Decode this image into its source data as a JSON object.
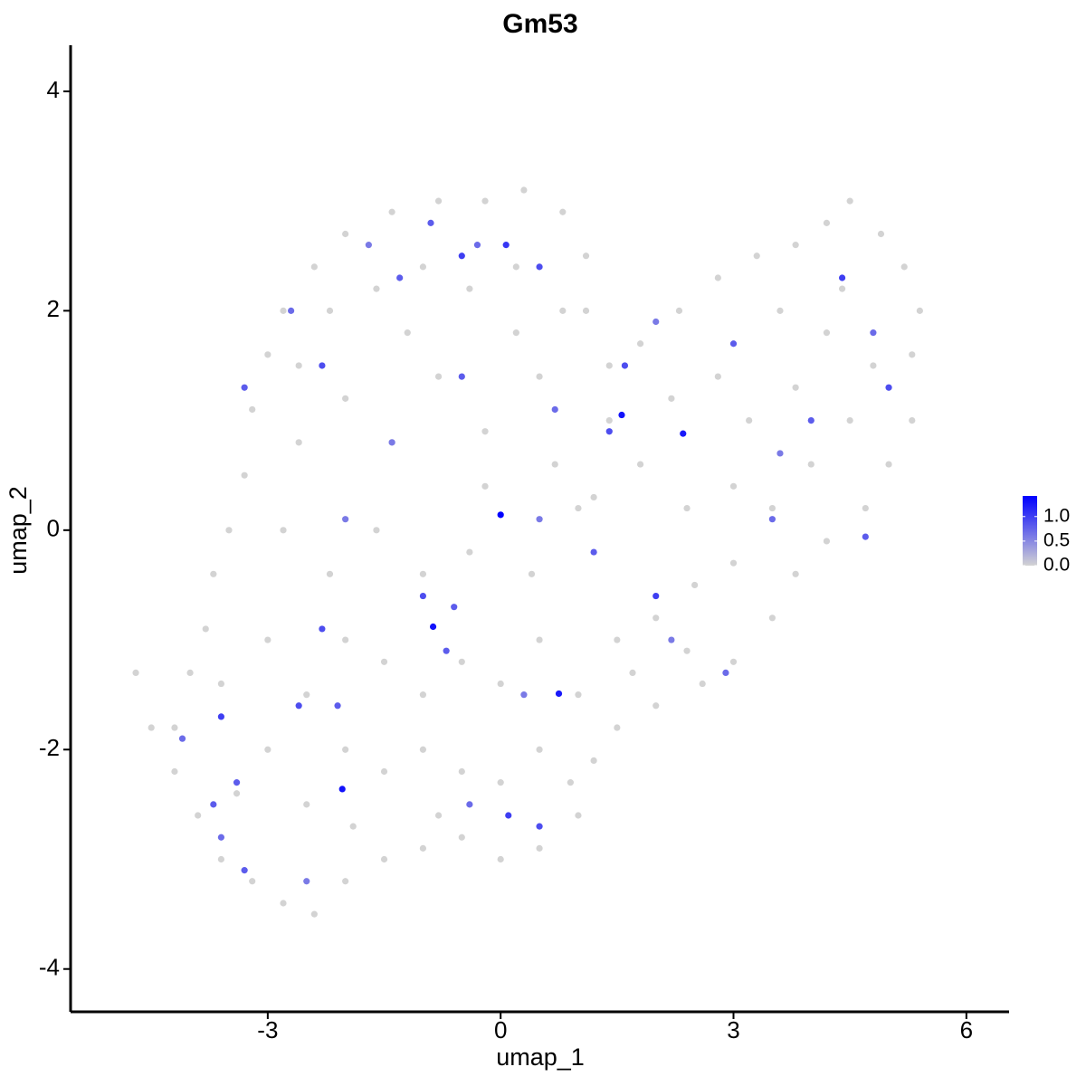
{
  "chart_data": {
    "type": "scatter",
    "title": "Gm53",
    "x_label": "umap_1",
    "y_label": "umap_2",
    "xlim": [
      -5.54,
      6.55
    ],
    "ylim": [
      -4.39,
      4.42
    ],
    "xticks": [
      -3,
      0,
      3,
      6
    ],
    "yticks": [
      -4,
      -2,
      0,
      2,
      4
    ],
    "color_low": "#d3d3d3",
    "color_high": "#0000ff",
    "colorbar_lim": [
      0,
      1.42
    ],
    "colorbar_ticks": [
      {
        "value": 0,
        "label": "0.0"
      },
      {
        "value": 0.5,
        "label": "0.5"
      },
      {
        "value": 1,
        "label": "1.0"
      }
    ],
    "x": [
      -4.7,
      -4.5,
      -4.2,
      -3.9,
      -3.6,
      -3.2,
      -2.8,
      -2.4,
      -2.0,
      -1.5,
      -1.0,
      -0.5,
      0.0,
      0.5,
      1.0,
      1.2,
      1.5,
      2.0,
      2.6,
      3.0,
      3.5,
      3.8,
      4.2,
      4.7,
      5.0,
      5.3,
      5.3,
      5.4,
      5.2,
      4.9,
      4.5,
      4.2,
      3.8,
      3.3,
      2.8,
      2.3,
      1.8,
      1.4,
      1.1,
      1.1,
      0.8,
      0.3,
      -0.2,
      -0.8,
      -1.4,
      -2.0,
      -2.4,
      -2.8,
      -3.0,
      -3.2,
      -3.3,
      -3.5,
      -3.7,
      -3.8,
      -4.0,
      -3,
      -2.5,
      -2,
      -1.5,
      -1,
      -0.5,
      0,
      0.5,
      1,
      -3,
      -2.5,
      -2,
      -1.5,
      -1,
      -0.5,
      0,
      0.5,
      1.5,
      2,
      2.5,
      3,
      3.5,
      4,
      4.5,
      4.8,
      4.2,
      3.8,
      3.2,
      2.8,
      2.2,
      1.8,
      1.2,
      2.4,
      3,
      -2.8,
      -2.2,
      -1.6,
      -1,
      -0.4,
      0.4,
      1,
      -2.6,
      -2,
      -1.4,
      -0.8,
      -0.2,
      0.5,
      -2.2,
      -1.6,
      -1,
      -0.4,
      0.2,
      0.8,
      -2.6,
      -1.2,
      0.2,
      1.4,
      3.6,
      4.4,
      2.4,
      -0.8,
      -3.4,
      -4.2,
      -3.6,
      -0.2,
      0.7,
      -1.9,
      0.9,
      1.7,
      -3.3,
      -2.7,
      -2.3,
      -1.7,
      -1.3,
      -0.5,
      -0.3,
      0.5,
      -0.9,
      -1.4,
      -0.5,
      0.7,
      1.6,
      2.0,
      3.0,
      4.4,
      4.8,
      5.0,
      4.0,
      3.6,
      4.7,
      3.5,
      -2.3,
      -2.0,
      -3.4,
      -3.6,
      -4.1,
      -2.6,
      -2.1,
      -2.5,
      -3.3,
      -0.4,
      0.5,
      0.3,
      1.2,
      2.0,
      2.9,
      -1.0,
      -0.6,
      0.5,
      -3.7,
      -3.6,
      1.4,
      2.2,
      -0.7,
      0.1,
      0.0,
      1.56,
      2.35,
      -0.87,
      0.75,
      -2.04,
      0.07
    ],
    "y": [
      -1.3,
      -1.8,
      -2.2,
      -2.6,
      -3.0,
      -3.2,
      -3.4,
      -3.5,
      -3.2,
      -3.0,
      -2.9,
      -2.8,
      -3.0,
      -2.9,
      -2.6,
      -2.1,
      -1.8,
      -1.6,
      -1.4,
      -1.2,
      -0.8,
      -0.4,
      -0.1,
      0.2,
      0.6,
      1.0,
      1.6,
      2.0,
      2.4,
      2.7,
      3.0,
      2.8,
      2.6,
      2.5,
      2.3,
      2.0,
      1.7,
      1.5,
      2.0,
      2.5,
      2.9,
      3.1,
      3.0,
      3.0,
      2.9,
      2.7,
      2.4,
      2.0,
      1.6,
      1.1,
      0.5,
      0.0,
      -0.4,
      -0.9,
      -1.3,
      -2,
      -2.5,
      -2,
      -2.2,
      -2,
      -2.2,
      -2.3,
      -2,
      -1.5,
      -1,
      -1.5,
      -1,
      -1.2,
      -1.5,
      -1.2,
      -1.4,
      -1,
      -1,
      -0.8,
      -0.5,
      -0.3,
      0.2,
      0.6,
      1.0,
      1.5,
      1.8,
      1.3,
      1.0,
      1.4,
      1.2,
      0.6,
      0.3,
      0.2,
      0.4,
      0,
      -0.4,
      0,
      -0.4,
      -0.2,
      -0.4,
      0.2,
      0.8,
      1.2,
      0.8,
      1.4,
      0.9,
      1.4,
      2,
      2.2,
      2.4,
      2.2,
      2.4,
      2,
      1.5,
      1.8,
      1.8,
      1,
      2,
      2.2,
      -1.1,
      -2.6,
      -2.4,
      -1.8,
      -1.4,
      0.4,
      0.6,
      -2.7,
      -2.3,
      -1.3,
      1.3,
      2.0,
      1.5,
      2.6,
      2.3,
      2.5,
      2.6,
      2.4,
      2.8,
      0.8,
      1.4,
      1.1,
      1.5,
      1.9,
      1.7,
      2.3,
      1.8,
      1.3,
      1.0,
      0.7,
      -0.06,
      0.1,
      -0.9,
      0.1,
      -2.3,
      -1.7,
      -1.9,
      -1.6,
      -1.6,
      -3.2,
      -3.1,
      -2.5,
      -2.7,
      -1.5,
      -0.2,
      -0.6,
      -1.3,
      -0.6,
      -0.7,
      0.1,
      -2.5,
      -2.8,
      0.9,
      -1.0,
      -1.1,
      -2.6,
      0.14,
      1.05,
      0.88,
      -0.88,
      -1.49,
      -2.36,
      2.6
    ],
    "values": [
      0,
      0,
      0,
      0,
      0,
      0,
      0,
      0,
      0,
      0,
      0,
      0,
      0,
      0,
      0,
      0,
      0,
      0,
      0,
      0,
      0,
      0,
      0,
      0,
      0,
      0,
      0,
      0,
      0,
      0,
      0,
      0,
      0,
      0,
      0,
      0,
      0,
      0,
      0,
      0,
      0,
      0,
      0,
      0,
      0,
      0,
      0,
      0,
      0,
      0,
      0,
      0,
      0,
      0,
      0,
      0,
      0,
      0,
      0,
      0,
      0,
      0,
      0,
      0,
      0,
      0,
      0,
      0,
      0,
      0,
      0,
      0,
      0,
      0,
      0,
      0,
      0,
      0,
      0,
      0,
      0,
      0,
      0,
      0,
      0,
      0,
      0,
      0,
      0,
      0,
      0,
      0,
      0,
      0,
      0,
      0,
      0,
      0,
      0,
      0,
      0,
      0,
      0,
      0,
      0,
      0,
      0,
      0,
      0,
      0,
      0,
      0,
      0,
      0,
      0,
      0,
      0,
      0,
      0,
      0,
      0,
      0,
      0,
      0,
      0.8,
      0.7,
      0.9,
      0.6,
      0.8,
      1.0,
      0.7,
      0.9,
      0.8,
      0.6,
      0.8,
      0.7,
      0.9,
      0.6,
      0.8,
      1.0,
      0.7,
      0.9,
      0.8,
      0.6,
      0.8,
      0.7,
      0.9,
      0.6,
      0.8,
      1.0,
      0.7,
      0.9,
      0.8,
      0.6,
      0.8,
      0.7,
      0.9,
      0.6,
      0.8,
      1.0,
      0.7,
      0.9,
      0.8,
      0.6,
      0.8,
      0.7,
      0.9,
      0.6,
      0.8,
      1.0,
      1.42,
      1.3,
      1.25,
      1.3,
      1.25,
      1.3,
      1.05
    ]
  }
}
